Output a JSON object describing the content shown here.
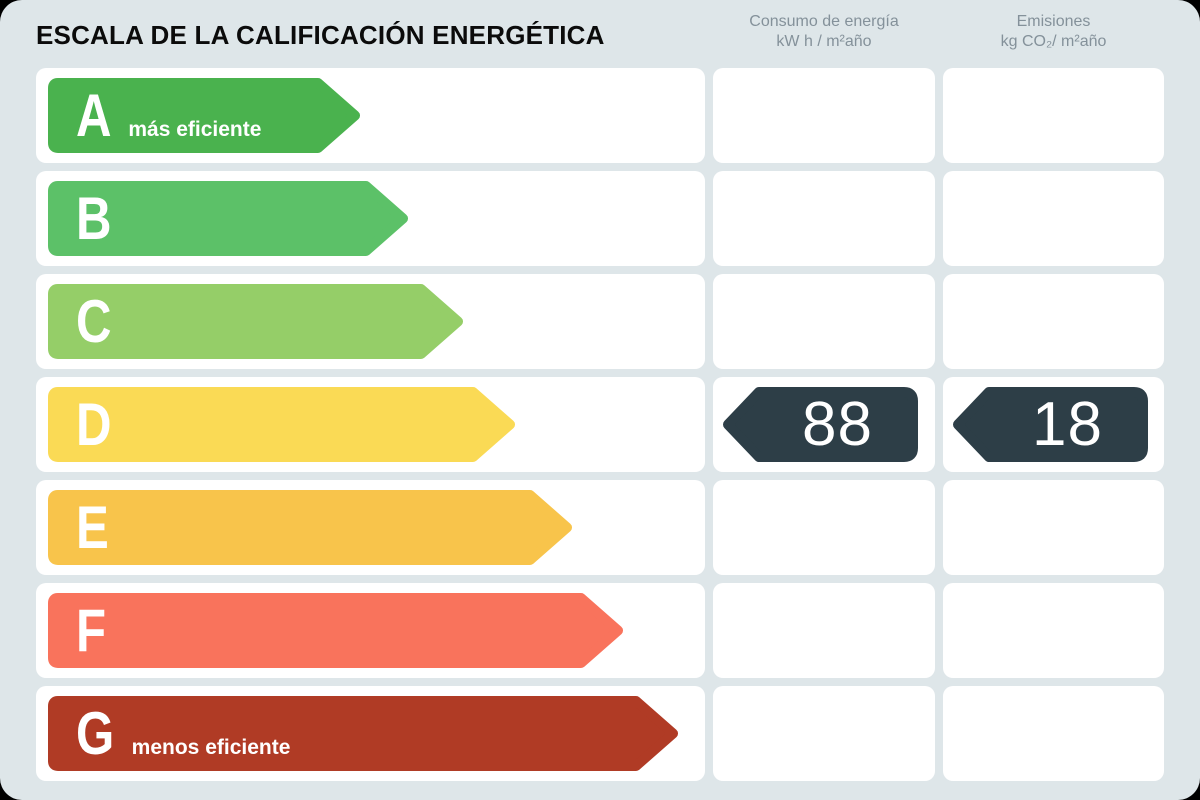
{
  "header": {
    "title": "ESCALA DE LA CALIFICACIÓN ENERGÉTICA",
    "consumption_label_line1": "Consumo de energía",
    "consumption_label_line2": "kW h / m²año",
    "emissions_label_line1": "Emisiones",
    "emissions_label_line2": "kg CO₂/ m²año"
  },
  "scale": {
    "rows": [
      {
        "grade": "A",
        "label": "más eficiente",
        "color": "#4ab24e",
        "arrow_width": 312
      },
      {
        "grade": "B",
        "label": "",
        "color": "#5cc168",
        "arrow_width": 360
      },
      {
        "grade": "C",
        "label": "",
        "color": "#95ce68",
        "arrow_width": 415
      },
      {
        "grade": "D",
        "label": "",
        "color": "#fada55",
        "arrow_width": 467
      },
      {
        "grade": "E",
        "label": "",
        "color": "#f8c44b",
        "arrow_width": 524
      },
      {
        "grade": "F",
        "label": "",
        "color": "#f9735c",
        "arrow_width": 575
      },
      {
        "grade": "G",
        "label": "menos eficiente",
        "color": "#b03b25",
        "arrow_width": 630
      }
    ]
  },
  "result": {
    "rating": "D",
    "consumption_value": "88",
    "emissions_value": "18",
    "arrow_color": "#2d3e47"
  },
  "colors": {
    "background": "#dee6e9",
    "cell": "#ffffff",
    "header_text": "#84919a",
    "title_text": "#0b0b0b",
    "value_text": "#ffffff"
  },
  "chart_data": {
    "type": "bar",
    "title": "ESCALA DE LA CALIFICACIÓN ENERGÉTICA",
    "categories": [
      "A",
      "B",
      "C",
      "D",
      "E",
      "F",
      "G"
    ],
    "series": [
      {
        "name": "scale_arrow_length_px",
        "values": [
          312,
          360,
          415,
          467,
          524,
          575,
          630
        ]
      }
    ],
    "bar_colors": [
      "#4ab24e",
      "#5cc168",
      "#95ce68",
      "#fada55",
      "#f8c44b",
      "#f9735c",
      "#b03b25"
    ],
    "columns": [
      "Consumo de energía kW h / m²año",
      "Emisiones kg CO₂/ m²año"
    ],
    "annotations": {
      "rating": "D",
      "consumo_kwh_m2_ano": 88,
      "emisiones_kgco2_m2_ano": 18,
      "top_label": "más eficiente",
      "bottom_label": "menos eficiente"
    },
    "orientation": "horizontal",
    "legend": false,
    "grid": false
  }
}
